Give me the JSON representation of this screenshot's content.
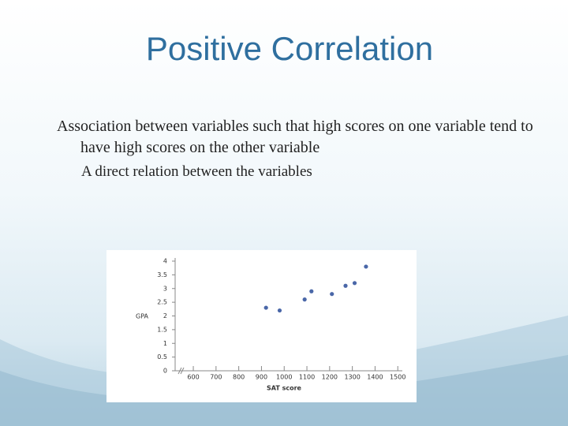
{
  "title": "Positive Correlation",
  "bullets": [
    "Association between variables such that high scores on one variable tend to have high scores on the other variable",
    "A direct relation between the variables"
  ],
  "chart_data": {
    "type": "scatter",
    "x_label": "SAT score",
    "y_label": "GPA",
    "x": [
      920,
      980,
      1090,
      1120,
      1210,
      1270,
      1310,
      1360
    ],
    "values": [
      2.3,
      2.2,
      2.6,
      2.9,
      2.8,
      3.1,
      3.2,
      3.8
    ],
    "color": "#4a67a8",
    "xlim": [
      520,
      1520
    ],
    "xticks": [
      600,
      700,
      800,
      900,
      1000,
      1100,
      1200,
      1300,
      1400,
      1500
    ],
    "ylim": [
      0,
      4
    ],
    "yticks": [
      0,
      0.5,
      1,
      1.5,
      2,
      2.5,
      3,
      3.5,
      4
    ]
  }
}
